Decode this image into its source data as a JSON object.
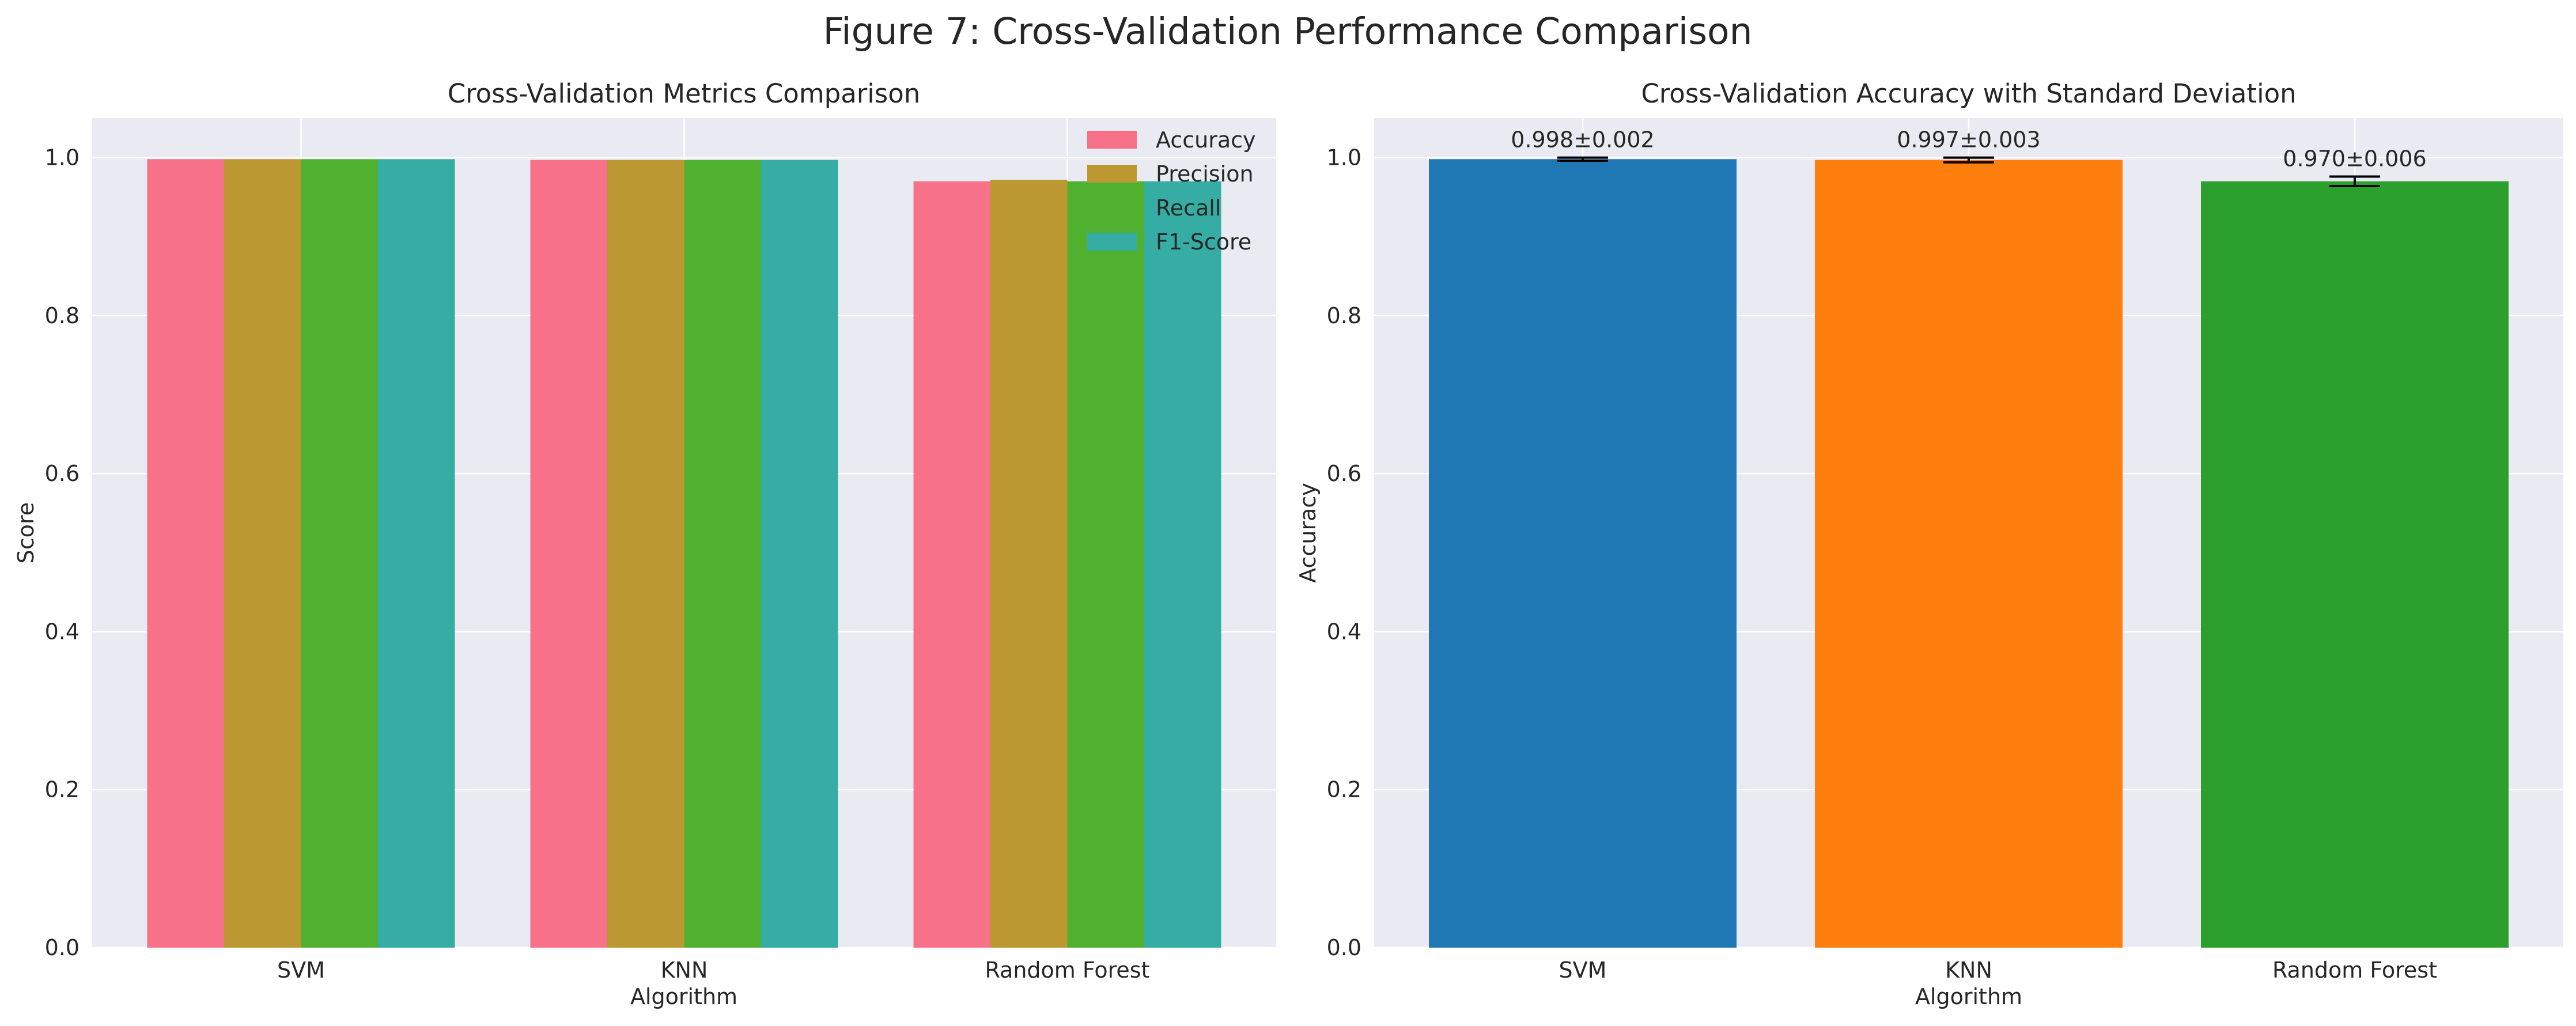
{
  "figure": {
    "title": "Figure 7: Cross-Validation Performance Comparison"
  },
  "chart_data": [
    {
      "type": "bar",
      "title": "Cross-Validation Metrics Comparison",
      "xlabel": "Algorithm",
      "ylabel": "Score",
      "categories": [
        "SVM",
        "KNN",
        "Random Forest"
      ],
      "ylim": [
        0,
        1.05
      ],
      "yticks": [
        "0.0",
        "0.2",
        "0.4",
        "0.6",
        "0.8",
        "1.0"
      ],
      "grid": true,
      "legend_position": "top-right",
      "series": [
        {
          "name": "Accuracy",
          "values": [
            0.998,
            0.997,
            0.97
          ],
          "color": "#f77189"
        },
        {
          "name": "Precision",
          "values": [
            0.998,
            0.997,
            0.972
          ],
          "color": "#bb9832"
        },
        {
          "name": "Recall",
          "values": [
            0.998,
            0.997,
            0.97
          ],
          "color": "#50b131"
        },
        {
          "name": "F1-Score",
          "values": [
            0.998,
            0.997,
            0.97
          ],
          "color": "#36ada4"
        }
      ]
    },
    {
      "type": "bar",
      "title": "Cross-Validation Accuracy with Standard Deviation",
      "xlabel": "Algorithm",
      "ylabel": "Accuracy",
      "categories": [
        "SVM",
        "KNN",
        "Random Forest"
      ],
      "ylim": [
        0,
        1.05
      ],
      "yticks": [
        "0.0",
        "0.2",
        "0.4",
        "0.6",
        "0.8",
        "1.0"
      ],
      "grid": true,
      "values": [
        0.998,
        0.997,
        0.97
      ],
      "errors": [
        0.002,
        0.003,
        0.006
      ],
      "labels": [
        "0.998±0.002",
        "0.997±0.003",
        "0.970±0.006"
      ],
      "colors": [
        "#1f77b4",
        "#ff7f0e",
        "#2ca02c"
      ]
    }
  ]
}
